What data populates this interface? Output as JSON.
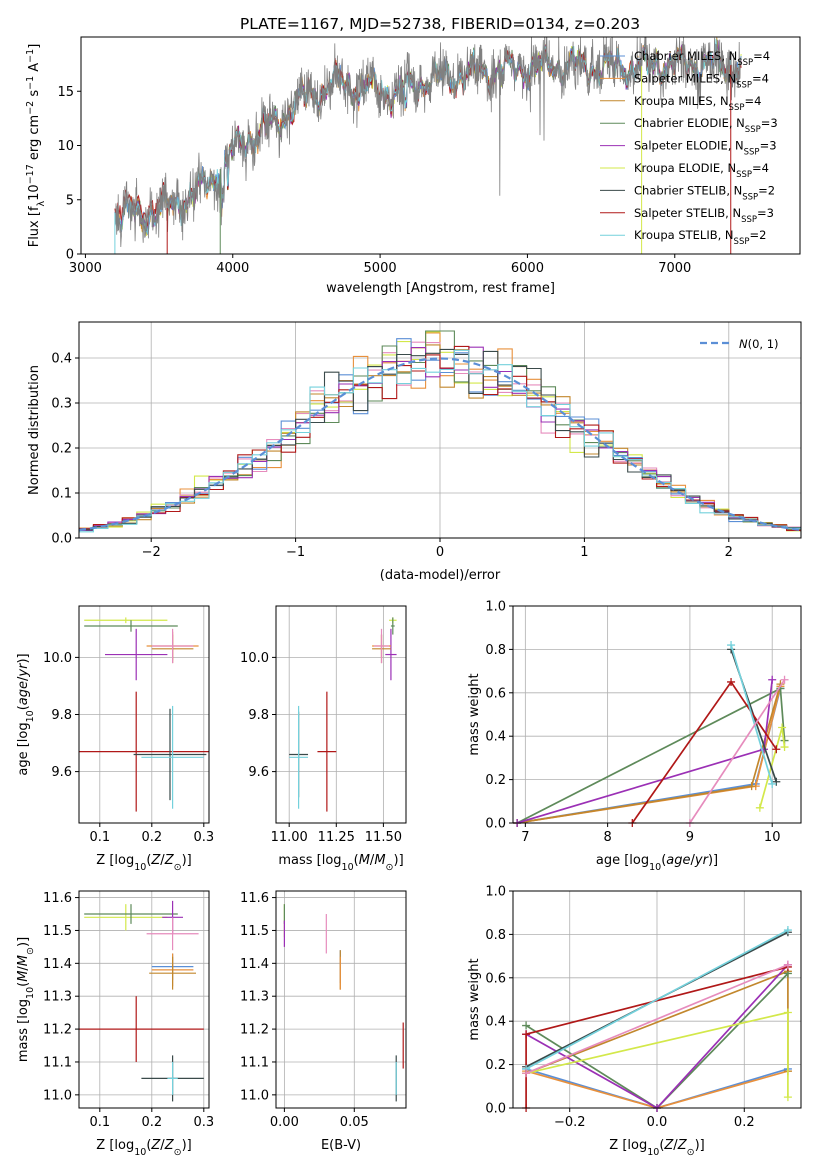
{
  "title": "PLATE=1167, MJD=52738, FIBERID=0134, z=0.203",
  "colors": {
    "Chabrier MILES": "#5b8fd6",
    "Salpeter MILES": "#e8903c",
    "Kroupa MILES": "#c2872d",
    "Chabrier ELODIE": "#5e8a5a",
    "Salpeter ELODIE": "#9b30b5",
    "Kroupa ELODIE": "#d3e84a",
    "Chabrier STELIB": "#3a4a4a",
    "Salpeter STELIB": "#b01818",
    "Kroupa STELIB": "#74d1dc",
    "normal": "#5b8fd6",
    "pink": "#e68cbd"
  },
  "chart_data": [
    {
      "id": "spectrum",
      "type": "line",
      "xlabel": "wavelength [Angstrom, rest frame]",
      "ylabel": "Flux [fλ10⁻¹⁷ erg cm⁻² s⁻¹ A⁻¹]",
      "xlim": [
        2970,
        7850
      ],
      "ylim": [
        0,
        20
      ],
      "xticks": [
        "3000",
        "4000",
        "5000",
        "6000",
        "7000"
      ],
      "yticks": [
        "0",
        "5",
        "10",
        "15"
      ],
      "legend_position": "right",
      "legend": [
        {
          "name": "Chabrier MILES, N",
          "sub": "SSP",
          "tail": "=4"
        },
        {
          "name": "Salpeter MILES, N",
          "sub": "SSP",
          "tail": "=4"
        },
        {
          "name": "Kroupa MILES, N",
          "sub": "SSP",
          "tail": "=4"
        },
        {
          "name": "Chabrier ELODIE, N",
          "sub": "SSP",
          "tail": "=3"
        },
        {
          "name": "Salpeter ELODIE, N",
          "sub": "SSP",
          "tail": "=3"
        },
        {
          "name": "Kroupa ELODIE, N",
          "sub": "SSP",
          "tail": "=4"
        },
        {
          "name": "Chabrier STELIB, N",
          "sub": "SSP",
          "tail": "=2"
        },
        {
          "name": "Salpeter STELIB, N",
          "sub": "SSP",
          "tail": "=3"
        },
        {
          "name": "Kroupa STELIB, N",
          "sub": "SSP",
          "tail": "=2"
        }
      ],
      "continuum": [
        [
          3200,
          3.8
        ],
        [
          3400,
          3.5
        ],
        [
          3550,
          4.2
        ],
        [
          3700,
          5.2
        ],
        [
          3850,
          6.6
        ],
        [
          3950,
          8.5
        ],
        [
          4050,
          10.2
        ],
        [
          4300,
          12.2
        ],
        [
          4500,
          14.6
        ],
        [
          4700,
          15.8
        ],
        [
          4900,
          15.4
        ],
        [
          5100,
          14.8
        ],
        [
          5300,
          15.9
        ],
        [
          5600,
          16.6
        ],
        [
          5900,
          17.1
        ],
        [
          6200,
          17.4
        ],
        [
          6500,
          17.2
        ],
        [
          6800,
          17.3
        ],
        [
          7100,
          17.6
        ],
        [
          7400,
          17.4
        ]
      ]
    },
    {
      "id": "residuals",
      "type": "line",
      "xlabel": "(data-model)/error",
      "ylabel": "Normed distribution",
      "xlim": [
        -2.5,
        2.5
      ],
      "ylim": [
        0,
        0.48
      ],
      "xticks": [
        "−2",
        "−1",
        "0",
        "1",
        "2"
      ],
      "yticks": [
        "0.0",
        "0.1",
        "0.2",
        "0.3",
        "0.4"
      ],
      "legend_label": "N(0,1)",
      "grid": true
    },
    {
      "id": "age_vs_Z",
      "type": "scatter",
      "xlabel": "Z [log10(Z/Z⊙)]",
      "ylabel": "age  [log10(age/yr)]",
      "xlim": [
        0.06,
        0.31
      ],
      "ylim": [
        9.42,
        10.18
      ],
      "xticks": [
        "0.1",
        "0.2",
        "0.3"
      ],
      "yticks": [
        "9.6",
        "9.8",
        "10.0"
      ],
      "points": [
        {
          "c": "Kroupa ELODIE",
          "x": 0.15,
          "y": 10.13,
          "dx": 0.08,
          "dy": 0.01
        },
        {
          "c": "Chabrier ELODIE",
          "x": 0.16,
          "y": 10.11,
          "dx": 0.09,
          "dy": 0.02
        },
        {
          "c": "Salpeter ELODIE",
          "x": 0.17,
          "y": 10.01,
          "dx": 0.06,
          "dy": 0.09
        },
        {
          "c": "Salpeter MILES",
          "x": 0.24,
          "y": 10.04,
          "dx": 0.05,
          "dy": 0.05
        },
        {
          "c": "Kroupa MILES",
          "x": 0.24,
          "y": 10.03,
          "dx": 0.04,
          "dy": 0.05
        },
        {
          "c": "pink",
          "x": 0.24,
          "y": 10.04,
          "dx": 0.04,
          "dy": 0.06
        },
        {
          "c": "Salpeter STELIB",
          "x": 0.17,
          "y": 9.67,
          "dx": 0.14,
          "dy": 0.21
        },
        {
          "c": "Chabrier STELIB",
          "x": 0.235,
          "y": 9.66,
          "dx": 0.07,
          "dy": 0.16
        },
        {
          "c": "Kroupa STELIB",
          "x": 0.24,
          "y": 9.65,
          "dx": 0.06,
          "dy": 0.18
        }
      ]
    },
    {
      "id": "age_vs_mass",
      "type": "scatter",
      "xlabel": "mass [log10(M/M⊙)]",
      "xlim": [
        10.93,
        11.62
      ],
      "ylim": [
        9.42,
        10.18
      ],
      "xticks": [
        "11.00",
        "11.25",
        "11.50"
      ],
      "yticks": [
        "9.6",
        "9.8",
        "10.0"
      ],
      "points": [
        {
          "c": "Kroupa ELODIE",
          "x": 11.55,
          "y": 10.13,
          "dx": 0.02,
          "dy": 0.01
        },
        {
          "c": "Chabrier ELODIE",
          "x": 11.55,
          "y": 10.11,
          "dx": 0.01,
          "dy": 0.03
        },
        {
          "c": "Salpeter ELODIE",
          "x": 11.54,
          "y": 10.01,
          "dx": 0.03,
          "dy": 0.09
        },
        {
          "c": "Salpeter MILES",
          "x": 11.49,
          "y": 10.04,
          "dx": 0.05,
          "dy": 0.04
        },
        {
          "c": "Kroupa MILES",
          "x": 11.49,
          "y": 10.03,
          "dx": 0.05,
          "dy": 0.05
        },
        {
          "c": "pink",
          "x": 11.49,
          "y": 10.04,
          "dx": 0.04,
          "dy": 0.06
        },
        {
          "c": "Salpeter STELIB",
          "x": 11.2,
          "y": 9.67,
          "dx": 0.05,
          "dy": 0.21
        },
        {
          "c": "Chabrier STELIB",
          "x": 11.05,
          "y": 9.66,
          "dx": 0.05,
          "dy": 0.15
        },
        {
          "c": "Kroupa STELIB",
          "x": 11.05,
          "y": 9.65,
          "dx": 0.05,
          "dy": 0.18
        }
      ]
    },
    {
      "id": "weight_vs_age",
      "type": "line",
      "xlabel": "age  [log10(age/yr)]",
      "ylabel": "mass weight",
      "xlim": [
        6.85,
        10.35
      ],
      "ylim": [
        0,
        1
      ],
      "xticks": [
        "7",
        "8",
        "9",
        "10"
      ],
      "yticks": [
        "0.0",
        "0.2",
        "0.4",
        "0.6",
        "0.8",
        "1.0"
      ],
      "series": [
        {
          "c": "Chabrier MILES",
          "x": [
            6.9,
            9.8,
            10.1
          ],
          "y": [
            0.0,
            0.18,
            0.62
          ]
        },
        {
          "c": "Salpeter MILES",
          "x": [
            6.9,
            9.8,
            10.1
          ],
          "y": [
            0.0,
            0.17,
            0.63
          ]
        },
        {
          "c": "Kroupa MILES",
          "x": [
            6.9,
            9.75,
            10.1
          ],
          "y": [
            0.0,
            0.17,
            0.64
          ]
        },
        {
          "c": "Chabrier ELODIE",
          "x": [
            6.9,
            10.1,
            10.15
          ],
          "y": [
            0.0,
            0.62,
            0.38
          ]
        },
        {
          "c": "Salpeter ELODIE",
          "x": [
            6.9,
            9.9,
            10.0
          ],
          "y": [
            0.0,
            0.34,
            0.66
          ]
        },
        {
          "c": "Kroupa ELODIE",
          "x": [
            9.85,
            10.12,
            10.15
          ],
          "y": [
            0.07,
            0.44,
            0.35
          ]
        },
        {
          "c": "Chabrier STELIB",
          "x": [
            9.5,
            10.05
          ],
          "y": [
            0.8,
            0.19
          ]
        },
        {
          "c": "Salpeter STELIB",
          "x": [
            8.3,
            9.5,
            10.05
          ],
          "y": [
            0.0,
            0.65,
            0.34
          ]
        },
        {
          "c": "Kroupa STELIB",
          "x": [
            9.5,
            10.0
          ],
          "y": [
            0.82,
            0.18
          ]
        },
        {
          "c": "pink",
          "x": [
            9.0,
            10.15
          ],
          "y": [
            0.0,
            0.66
          ]
        }
      ]
    },
    {
      "id": "mass_vs_Z",
      "type": "scatter",
      "xlabel": "Z [log10(Z/Z⊙)]",
      "ylabel": "mass [log10(M/M⊙)]",
      "xlim": [
        0.06,
        0.31
      ],
      "ylim": [
        10.96,
        11.62
      ],
      "xticks": [
        "0.1",
        "0.2",
        "0.3"
      ],
      "yticks": [
        "11.0",
        "11.1",
        "11.2",
        "11.3",
        "11.4",
        "11.5",
        "11.6"
      ],
      "points": [
        {
          "c": "Kroupa ELODIE",
          "x": 0.15,
          "y": 11.54,
          "dx": 0.08,
          "dy": 0.04
        },
        {
          "c": "Chabrier ELODIE",
          "x": 0.16,
          "y": 11.55,
          "dx": 0.09,
          "dy": 0.03
        },
        {
          "c": "Salpeter ELODIE",
          "x": 0.24,
          "y": 11.54,
          "dx": 0.02,
          "dy": 0.05
        },
        {
          "c": "pink",
          "x": 0.24,
          "y": 11.49,
          "dx": 0.05,
          "dy": 0.05
        },
        {
          "c": "Chabrier MILES",
          "x": 0.24,
          "y": 11.39,
          "dx": 0.04,
          "dy": 0.04
        },
        {
          "c": "Salpeter MILES",
          "x": 0.24,
          "y": 11.38,
          "dx": 0.04,
          "dy": 0.05
        },
        {
          "c": "Kroupa MILES",
          "x": 0.24,
          "y": 11.37,
          "dx": 0.045,
          "dy": 0.05
        },
        {
          "c": "Salpeter STELIB",
          "x": 0.17,
          "y": 11.2,
          "dx": 0.13,
          "dy": 0.1
        },
        {
          "c": "Chabrier STELIB",
          "x": 0.24,
          "y": 11.05,
          "dx": 0.06,
          "dy": 0.07
        },
        {
          "c": "Kroupa STELIB",
          "x": 0.24,
          "y": 11.05,
          "dx": 0.01,
          "dy": 0.05
        }
      ]
    },
    {
      "id": "mass_vs_ebv",
      "type": "scatter",
      "xlabel": "E(B-V)",
      "xlim": [
        -0.006,
        0.087
      ],
      "ylim": [
        10.96,
        11.62
      ],
      "xticks": [
        "0.00",
        "0.05"
      ],
      "yticks": [
        "11.0",
        "11.1",
        "11.2",
        "11.3",
        "11.4",
        "11.5",
        "11.6"
      ],
      "points": [
        {
          "c": "Kroupa ELODIE",
          "x": 0.0,
          "y": 11.53,
          "dy": 0.05
        },
        {
          "c": "Chabrier ELODIE",
          "x": 0.0,
          "y": 11.55,
          "dy": 0.03
        },
        {
          "c": "Salpeter ELODIE",
          "x": 0.0,
          "y": 11.49,
          "dy": 0.04
        },
        {
          "c": "pink",
          "x": 0.03,
          "y": 11.49,
          "dy": 0.06
        },
        {
          "c": "Chabrier MILES",
          "x": 0.04,
          "y": 11.39,
          "dy": 0.05
        },
        {
          "c": "Kroupa MILES",
          "x": 0.04,
          "y": 11.38,
          "dy": 0.06
        },
        {
          "c": "Salpeter MILES",
          "x": 0.04,
          "y": 11.37,
          "dy": 0.05
        },
        {
          "c": "Salpeter STELIB",
          "x": 0.085,
          "y": 11.15,
          "dy": 0.07
        },
        {
          "c": "Chabrier STELIB",
          "x": 0.08,
          "y": 11.05,
          "dy": 0.07
        },
        {
          "c": "Kroupa STELIB",
          "x": 0.08,
          "y": 11.05,
          "dy": 0.05
        }
      ]
    },
    {
      "id": "weight_vs_Z",
      "type": "line",
      "xlabel": "Z [log10(Z/Z⊙)]",
      "ylabel": "mass weight",
      "xlim": [
        -0.33,
        0.33
      ],
      "ylim": [
        0,
        1
      ],
      "xticks": [
        "−0.2",
        "0.0",
        "0.2"
      ],
      "yticks": [
        "0.0",
        "0.2",
        "0.4",
        "0.6",
        "0.8",
        "1.0"
      ],
      "series": [
        {
          "c": "Chabrier MILES",
          "x": [
            -0.3,
            0.0,
            0.3
          ],
          "y": [
            0.18,
            0.0,
            0.18
          ]
        },
        {
          "c": "Salpeter MILES",
          "x": [
            -0.3,
            0.0,
            0.3
          ],
          "y": [
            0.17,
            0.0,
            0.17
          ]
        },
        {
          "c": "Kroupa MILES",
          "x": [
            -0.3,
            0.3,
            0.3
          ],
          "y": [
            0.16,
            0.63,
            0.17
          ]
        },
        {
          "c": "Chabrier ELODIE",
          "x": [
            -0.3,
            0.0,
            0.3
          ],
          "y": [
            0.38,
            0.0,
            0.62
          ]
        },
        {
          "c": "Salpeter ELODIE",
          "x": [
            -0.3,
            0.0,
            0.3
          ],
          "y": [
            0.34,
            0.0,
            0.66
          ]
        },
        {
          "c": "Kroupa ELODIE",
          "x": [
            -0.3,
            0.3,
            0.3
          ],
          "y": [
            0.16,
            0.44,
            0.05
          ]
        },
        {
          "c": "Chabrier STELIB",
          "x": [
            -0.3,
            0.3
          ],
          "y": [
            0.19,
            0.81
          ]
        },
        {
          "c": "Salpeter STELIB",
          "x": [
            -0.3,
            -0.3,
            0.3
          ],
          "y": [
            0.0,
            0.34,
            0.65
          ]
        },
        {
          "c": "Kroupa STELIB",
          "x": [
            -0.3,
            0.3
          ],
          "y": [
            0.18,
            0.82
          ]
        },
        {
          "c": "pink",
          "x": [
            -0.3,
            0.3
          ],
          "y": [
            0.16,
            0.66
          ]
        }
      ]
    }
  ]
}
